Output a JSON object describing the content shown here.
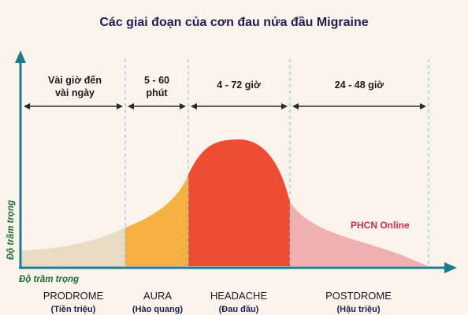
{
  "title": "Các giai đoạn của cơn đau nửa đầu Migraine",
  "y_axis_label": "Độ trầm trọng",
  "x_axis_label": "Độ trầm trọng",
  "watermark": "PHCN Online",
  "phases": [
    {
      "name": "PRODROME",
      "subtitle": "(Tiền triệu)",
      "duration_line1": "Vài giờ đến",
      "duration_line2": "vài ngày",
      "color": "#e9dcc5"
    },
    {
      "name": "AURA",
      "subtitle": "(Hào quang)",
      "duration_line1": "5 - 60",
      "duration_line2": "phút",
      "color": "#f6b143"
    },
    {
      "name": "HEADACHE",
      "subtitle": "(Đau đầu)",
      "duration_line1": "4 - 72 giờ",
      "duration_line2": "",
      "color": "#ee4c33"
    },
    {
      "name": "POSTDROME",
      "subtitle": "(Hậu triệu)",
      "duration_line1": "24 - 48 giờ",
      "duration_line2": "",
      "color": "#f1b0b0"
    }
  ],
  "colors": {
    "background": "#fbf3ec",
    "axis": "#1f7a8c",
    "divider": "#8fc5cc",
    "title": "#1d1d4f",
    "axis_label": "#1f6b2f",
    "watermark": "#c2304a"
  }
}
